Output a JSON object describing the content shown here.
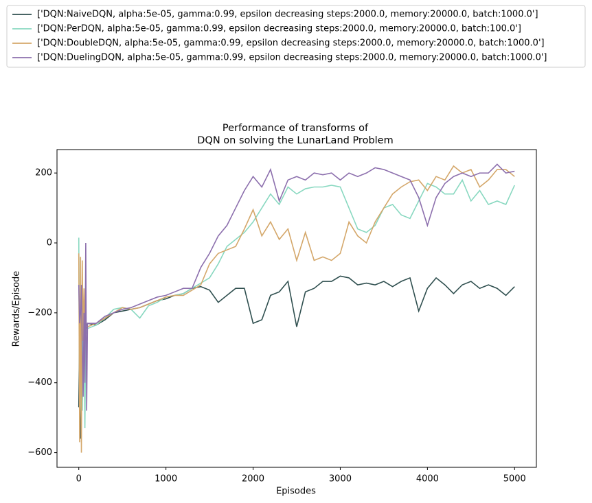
{
  "chart_data": {
    "type": "line",
    "title": [
      "Performance of transforms of",
      "DQN on solving the LunarLand Problem"
    ],
    "x_label": "Episodes",
    "y_label": "Rewards/Episode",
    "legend": "outside-top-left",
    "xlim": [
      -250,
      5250
    ],
    "ylim": [
      -642,
      267
    ],
    "xticks": [
      0,
      1000,
      2000,
      3000,
      4000,
      5000
    ],
    "yticks": [
      {
        "value": -600,
        "label": "−600"
      },
      {
        "value": -400,
        "label": "−400"
      },
      {
        "value": -200,
        "label": "−200"
      },
      0,
      200
    ],
    "x": [
      0,
      10,
      20,
      30,
      40,
      50,
      60,
      70,
      80,
      90,
      100,
      200,
      300,
      400,
      500,
      600,
      700,
      800,
      900,
      1000,
      1100,
      1200,
      1300,
      1400,
      1500,
      1600,
      1700,
      1800,
      1900,
      2000,
      2100,
      2200,
      2300,
      2400,
      2500,
      2600,
      2700,
      2800,
      2900,
      3000,
      3100,
      3200,
      3300,
      3400,
      3500,
      3600,
      3700,
      3800,
      3900,
      4000,
      4100,
      4200,
      4300,
      4400,
      4500,
      4600,
      4700,
      4800,
      4900,
      5000
    ],
    "series": [
      {
        "name": "['DQN:NaiveDQN, alpha:5e-05, gamma:0.99, epsilon decreasing steps:2000.0, memory:20000.0, batch:1000.0']",
        "color": "#2f4f4f",
        "values": [
          -470,
          -230,
          -560,
          -250,
          -450,
          -220,
          -300,
          -230,
          -250,
          -240,
          -230,
          -235,
          -220,
          -200,
          -195,
          -190,
          -185,
          -175,
          -165,
          -160,
          -150,
          -145,
          -130,
          -125,
          -135,
          -170,
          -150,
          -130,
          -130,
          -230,
          -220,
          -150,
          -140,
          -110,
          -240,
          -140,
          -130,
          -110,
          -110,
          -95,
          -100,
          -120,
          -115,
          -120,
          -110,
          -125,
          -110,
          -100,
          -195,
          -130,
          -100,
          -120,
          -145,
          -120,
          -110,
          -130,
          -120,
          -130,
          -150,
          -125
        ]
      },
      {
        "name": "['DQN:PerDQN, alpha:5e-05, gamma:0.99, epsilon decreasing steps:2000.0, memory:20000.0, batch:100.0']",
        "color": "#88d8c0",
        "values": [
          15,
          -520,
          -420,
          -200,
          -480,
          -250,
          -230,
          -530,
          -240,
          -260,
          -245,
          -235,
          -215,
          -190,
          -185,
          -190,
          -215,
          -180,
          -170,
          -155,
          -150,
          -145,
          -130,
          -115,
          -100,
          -60,
          -10,
          10,
          30,
          60,
          100,
          140,
          110,
          160,
          140,
          155,
          160,
          160,
          165,
          160,
          100,
          40,
          30,
          50,
          100,
          110,
          80,
          70,
          120,
          170,
          160,
          140,
          140,
          180,
          120,
          150,
          110,
          120,
          110,
          165
        ]
      },
      {
        "name": "['DQN:DoubleDQN, alpha:5e-05, gamma:0.99, epsilon decreasing steps:2000.0, memory:20000.0, batch:1000.0']",
        "color": "#d4a76a",
        "values": [
          -30,
          -570,
          -40,
          -600,
          -50,
          -280,
          -130,
          -250,
          -230,
          -240,
          -240,
          -230,
          -215,
          -200,
          -185,
          -190,
          -185,
          -175,
          -165,
          -155,
          -150,
          -150,
          -135,
          -120,
          -60,
          -30,
          -20,
          -10,
          40,
          95,
          20,
          60,
          10,
          40,
          -50,
          30,
          -50,
          -40,
          -50,
          -30,
          60,
          20,
          0,
          60,
          100,
          140,
          160,
          175,
          180,
          150,
          190,
          180,
          220,
          200,
          210,
          160,
          180,
          210,
          210,
          190
        ]
      },
      {
        "name": "['DQN:DuelingDQN, alpha:5e-05, gamma:0.99, epsilon decreasing steps:2000.0, memory:20000.0, batch:1000.0']",
        "color": "#8c6fad",
        "values": [
          -120,
          -230,
          -200,
          -120,
          -300,
          -440,
          -200,
          -400,
          0,
          -480,
          -230,
          -230,
          -210,
          -200,
          -190,
          -185,
          -175,
          -165,
          -155,
          -150,
          -140,
          -130,
          -130,
          -70,
          -30,
          20,
          50,
          100,
          150,
          190,
          160,
          210,
          120,
          180,
          190,
          180,
          200,
          195,
          200,
          180,
          200,
          190,
          200,
          215,
          210,
          200,
          190,
          180,
          130,
          50,
          130,
          170,
          190,
          200,
          190,
          200,
          200,
          225,
          200,
          205
        ]
      }
    ]
  }
}
